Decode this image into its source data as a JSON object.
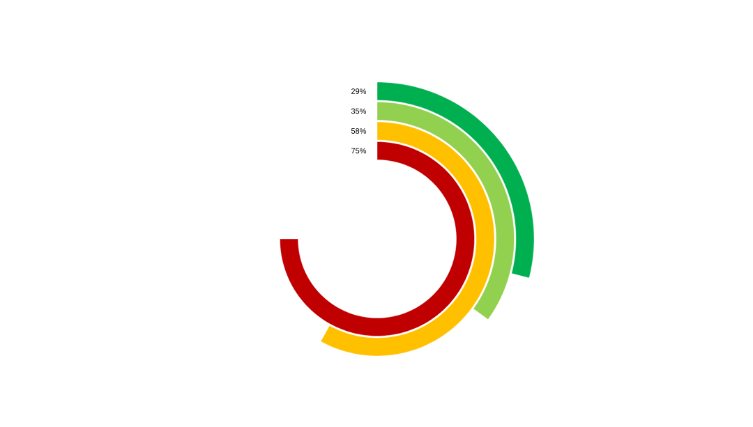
{
  "chart_data": {
    "type": "other",
    "categories": [
      null,
      null,
      null,
      null
    ],
    "values": [
      29,
      35,
      58,
      75
    ],
    "colors": [
      "#00b050",
      "#92d050",
      "#ffc000",
      "#c00000"
    ],
    "value_labels": [
      "29%",
      "35%",
      "58%",
      "75%"
    ]
  }
}
